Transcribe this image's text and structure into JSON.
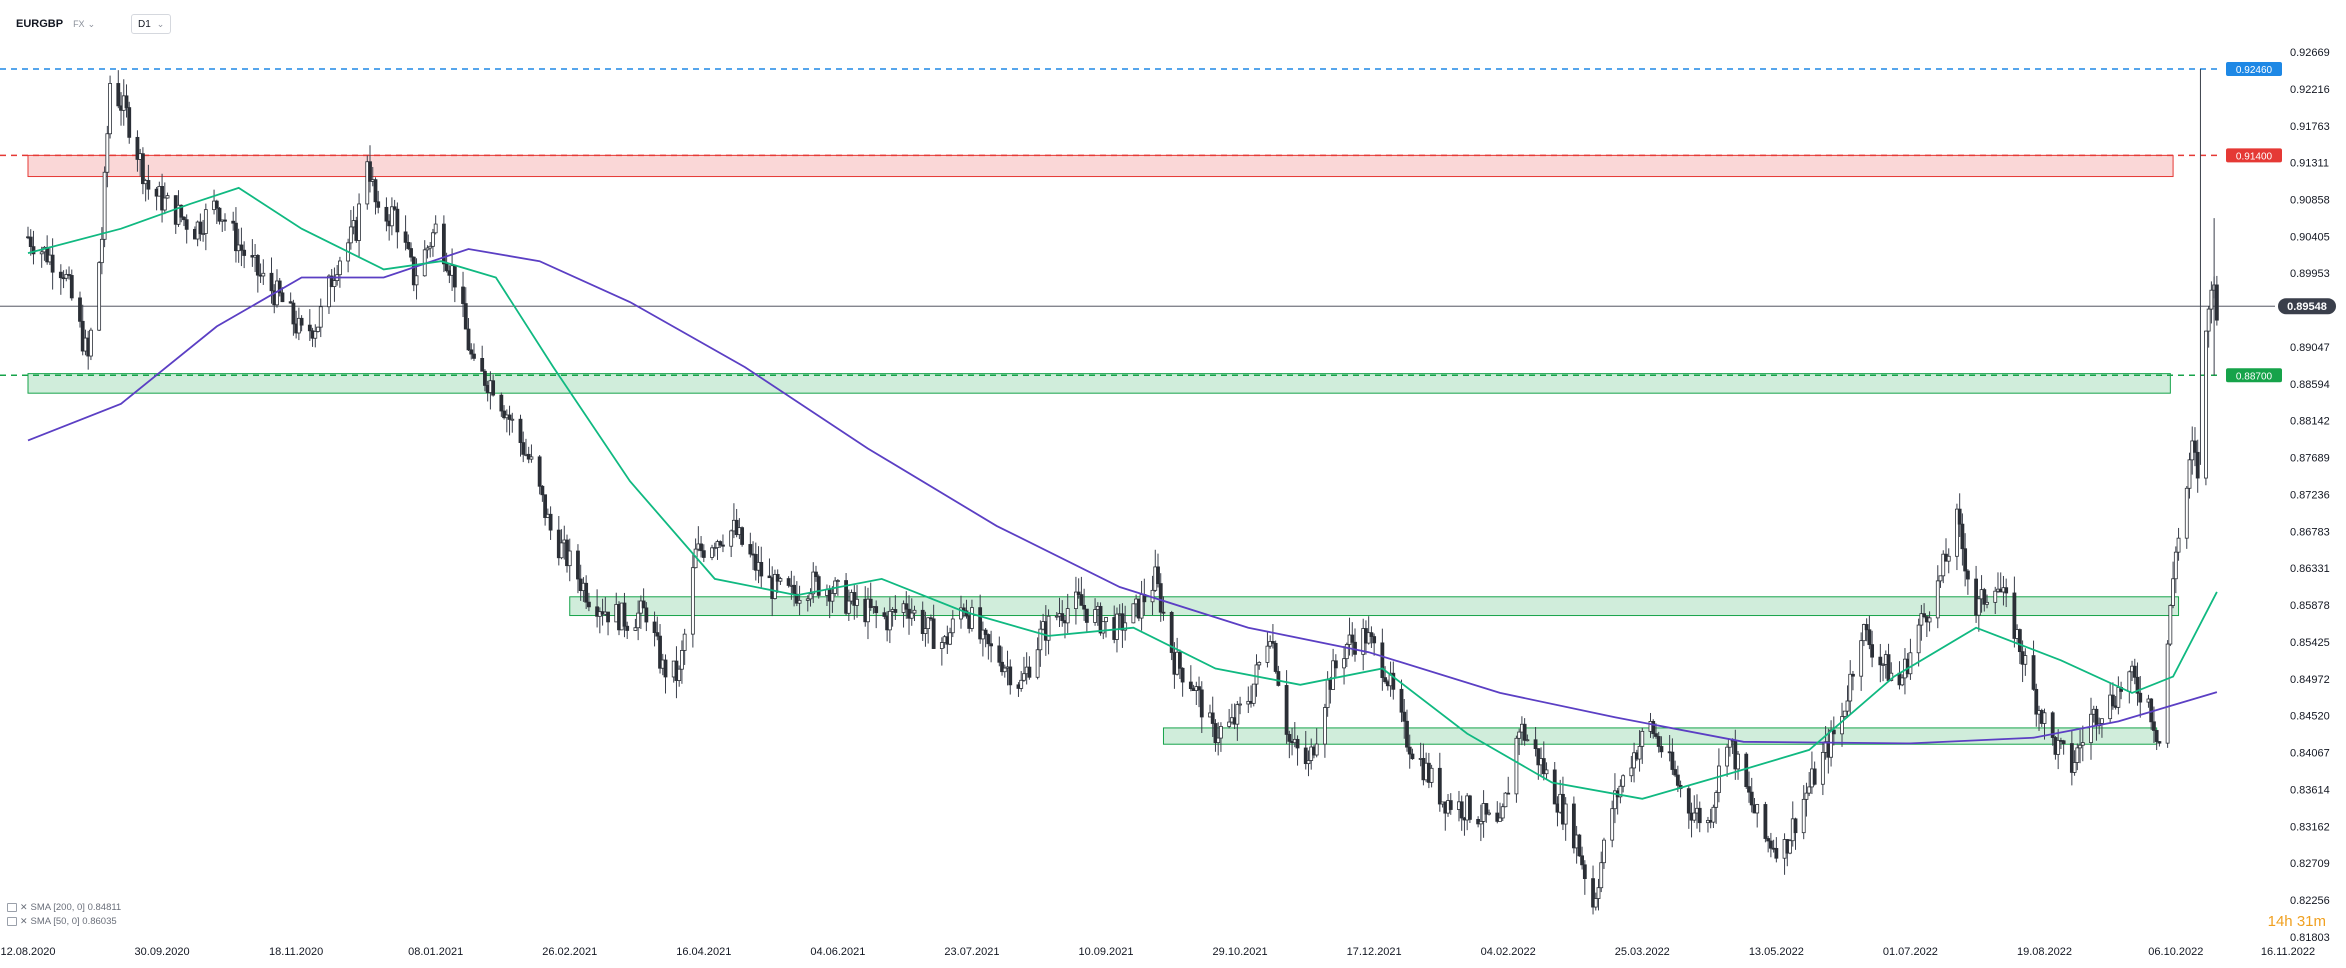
{
  "header": {
    "symbol": "EURGBP",
    "market": "FX",
    "timeframe": "D1"
  },
  "indicators": [
    {
      "label": "SMA [200, 0] 0.84811",
      "color": "#5b3fc4"
    },
    {
      "label": "SMA [50, 0] 0.86035",
      "color": "#10b981"
    }
  ],
  "countdown": "14h 31m",
  "price_tag": {
    "value": "0.89548",
    "color": "#3a3f4b"
  },
  "chart_data": {
    "type": "candlestick",
    "instrument": "EURGBP",
    "timeframe": "D1",
    "ylim": [
      0.818,
      0.929
    ],
    "xlim": [
      "2020-08-12",
      "2022-11-22"
    ],
    "y_ticks": [
      "0.92669",
      "0.92216",
      "0.91763",
      "0.91311",
      "0.90858",
      "0.90405",
      "0.89953",
      "0.89500",
      "0.89047",
      "0.88594",
      "0.88142",
      "0.87689",
      "0.87236",
      "0.86783",
      "0.86331",
      "0.85878",
      "0.85425",
      "0.84972",
      "0.84520",
      "0.84067",
      "0.83614",
      "0.83162",
      "0.82709",
      "0.82256",
      "0.81803"
    ],
    "x_ticks": [
      "12.08.2020",
      "30.09.2020",
      "18.11.2020",
      "08.01.2021",
      "26.02.2021",
      "16.04.2021",
      "04.06.2021",
      "23.07.2021",
      "10.09.2021",
      "29.10.2021",
      "17.12.2021",
      "04.02.2022",
      "25.03.2022",
      "13.05.2022",
      "01.07.2022",
      "19.08.2022",
      "06.10.2022",
      "16.11.2022"
    ],
    "last_price": 0.89548,
    "horizontal_levels": [
      {
        "value": 0.9246,
        "label": "0.92460",
        "color": "#1e88e5",
        "style": "dashed"
      },
      {
        "value": 0.914,
        "label": "0.91400",
        "color": "#e53935",
        "style": "dashed"
      },
      {
        "value": 0.887,
        "label": "0.88700",
        "color": "#16a34a",
        "style": "dashed"
      }
    ],
    "zones": [
      {
        "from": "2020-08-12",
        "to": "2022-10-05",
        "low": 0.9114,
        "high": 0.914,
        "color": "#e53935"
      },
      {
        "from": "2020-08-12",
        "to": "2022-10-04",
        "low": 0.8848,
        "high": 0.8872,
        "color": "#16a34a"
      },
      {
        "from": "2021-02-26",
        "to": "2022-10-07",
        "low": 0.8575,
        "high": 0.8598,
        "color": "#16a34a"
      },
      {
        "from": "2021-10-01",
        "to": "2022-09-29",
        "low": 0.8417,
        "high": 0.8437,
        "color": "#16a34a"
      }
    ],
    "price_path": [
      [
        "2020-08-12",
        0.904
      ],
      [
        "2020-08-25",
        0.9
      ],
      [
        "2020-09-03",
        0.889
      ],
      [
        "2020-09-08",
        0.904
      ],
      [
        "2020-09-11",
        0.923
      ],
      [
        "2020-09-17",
        0.919
      ],
      [
        "2020-09-25",
        0.91
      ],
      [
        "2020-10-05",
        0.907
      ],
      [
        "2020-10-12",
        0.905
      ],
      [
        "2020-10-20",
        0.908
      ],
      [
        "2020-10-28",
        0.903
      ],
      [
        "2020-11-05",
        0.899
      ],
      [
        "2020-11-12",
        0.8965
      ],
      [
        "2020-11-20",
        0.892
      ],
      [
        "2020-11-26",
        0.8935
      ],
      [
        "2020-12-03",
        0.901
      ],
      [
        "2020-12-10",
        0.905
      ],
      [
        "2020-12-14",
        0.914
      ],
      [
        "2020-12-18",
        0.906
      ],
      [
        "2020-12-24",
        0.907
      ],
      [
        "2020-12-31",
        0.899
      ],
      [
        "2021-01-08",
        0.905
      ],
      [
        "2021-01-15",
        0.899
      ],
      [
        "2021-01-22",
        0.8875
      ],
      [
        "2021-01-29",
        0.886
      ],
      [
        "2021-02-05",
        0.881
      ],
      [
        "2021-02-12",
        0.876
      ],
      [
        "2021-02-19",
        0.868
      ],
      [
        "2021-02-26",
        0.864
      ],
      [
        "2021-03-05",
        0.86
      ],
      [
        "2021-03-12",
        0.858
      ],
      [
        "2021-03-19",
        0.857
      ],
      [
        "2021-03-26",
        0.858
      ],
      [
        "2021-04-01",
        0.851
      ],
      [
        "2021-04-07",
        0.85
      ],
      [
        "2021-04-13",
        0.865
      ],
      [
        "2021-04-20",
        0.867
      ],
      [
        "2021-04-27",
        0.868
      ],
      [
        "2021-05-04",
        0.864
      ],
      [
        "2021-05-11",
        0.861
      ],
      [
        "2021-05-18",
        0.86
      ],
      [
        "2021-05-25",
        0.8615
      ],
      [
        "2021-06-01",
        0.861
      ],
      [
        "2021-06-08",
        0.859
      ],
      [
        "2021-06-15",
        0.858
      ],
      [
        "2021-06-22",
        0.857
      ],
      [
        "2021-06-29",
        0.859
      ],
      [
        "2021-07-06",
        0.856
      ],
      [
        "2021-07-13",
        0.854
      ],
      [
        "2021-07-20",
        0.859
      ],
      [
        "2021-07-27",
        0.854
      ],
      [
        "2021-08-03",
        0.852
      ],
      [
        "2021-08-10",
        0.849
      ],
      [
        "2021-08-17",
        0.855
      ],
      [
        "2021-08-24",
        0.858
      ],
      [
        "2021-08-31",
        0.859
      ],
      [
        "2021-09-07",
        0.857
      ],
      [
        "2021-09-14",
        0.856
      ],
      [
        "2021-09-21",
        0.858
      ],
      [
        "2021-09-28",
        0.862
      ],
      [
        "2021-10-05",
        0.852
      ],
      [
        "2021-10-12",
        0.849
      ],
      [
        "2021-10-19",
        0.843
      ],
      [
        "2021-10-26",
        0.844
      ],
      [
        "2021-11-02",
        0.848
      ],
      [
        "2021-11-09",
        0.856
      ],
      [
        "2021-11-16",
        0.842
      ],
      [
        "2021-11-23",
        0.839
      ],
      [
        "2021-11-30",
        0.849
      ],
      [
        "2021-12-07",
        0.854
      ],
      [
        "2021-12-14",
        0.855
      ],
      [
        "2021-12-21",
        0.851
      ],
      [
        "2021-12-28",
        0.843
      ],
      [
        "2022-01-04",
        0.839
      ],
      [
        "2022-01-11",
        0.835
      ],
      [
        "2022-01-18",
        0.834
      ],
      [
        "2022-01-25",
        0.833
      ],
      [
        "2022-02-01",
        0.831
      ],
      [
        "2022-02-08",
        0.844
      ],
      [
        "2022-02-15",
        0.84
      ],
      [
        "2022-02-22",
        0.835
      ],
      [
        "2022-03-01",
        0.83
      ],
      [
        "2022-03-07",
        0.822
      ],
      [
        "2022-03-14",
        0.834
      ],
      [
        "2022-03-21",
        0.84
      ],
      [
        "2022-03-28",
        0.844
      ],
      [
        "2022-04-04",
        0.839
      ],
      [
        "2022-04-11",
        0.834
      ],
      [
        "2022-04-18",
        0.832
      ],
      [
        "2022-04-25",
        0.843
      ],
      [
        "2022-05-02",
        0.836
      ],
      [
        "2022-05-09",
        0.83
      ],
      [
        "2022-05-16",
        0.829
      ],
      [
        "2022-05-23",
        0.835
      ],
      [
        "2022-05-30",
        0.84
      ],
      [
        "2022-06-06",
        0.845
      ],
      [
        "2022-06-13",
        0.856
      ],
      [
        "2022-06-20",
        0.852
      ],
      [
        "2022-06-27",
        0.849
      ],
      [
        "2022-07-04",
        0.856
      ],
      [
        "2022-07-11",
        0.861
      ],
      [
        "2022-07-18",
        0.869
      ],
      [
        "2022-07-25",
        0.858
      ],
      [
        "2022-08-01",
        0.862
      ],
      [
        "2022-08-08",
        0.856
      ],
      [
        "2022-08-15",
        0.848
      ],
      [
        "2022-08-22",
        0.842
      ],
      [
        "2022-08-29",
        0.839
      ],
      [
        "2022-09-05",
        0.845
      ],
      [
        "2022-09-12",
        0.847
      ],
      [
        "2022-09-19",
        0.85
      ],
      [
        "2022-09-26",
        0.847
      ],
      [
        "2022-09-30",
        0.842
      ],
      [
        "2022-10-04",
        0.858
      ],
      [
        "2022-10-06",
        0.866
      ],
      [
        "2022-10-08",
        0.868
      ],
      [
        "2022-10-10",
        0.873
      ],
      [
        "2022-10-12",
        0.878
      ],
      [
        "2022-10-14",
        0.875
      ],
      [
        "2022-10-16",
        0.888
      ],
      [
        "2022-10-18",
        0.895
      ],
      [
        "2022-10-19",
        0.899
      ],
      [
        "2022-10-21",
        0.8955
      ]
    ],
    "sma_200": [
      [
        "2020-08-12",
        0.879
      ],
      [
        "2020-09-15",
        0.8835
      ],
      [
        "2020-10-20",
        0.893
      ],
      [
        "2020-11-20",
        0.899
      ],
      [
        "2020-12-20",
        0.899
      ],
      [
        "2021-01-20",
        0.9025
      ],
      [
        "2021-02-15",
        0.901
      ],
      [
        "2021-03-20",
        0.896
      ],
      [
        "2021-05-01",
        0.888
      ],
      [
        "2021-06-15",
        0.878
      ],
      [
        "2021-08-01",
        0.8685
      ],
      [
        "2021-09-15",
        0.861
      ],
      [
        "2021-11-01",
        0.856
      ],
      [
        "2021-12-15",
        0.853
      ],
      [
        "2022-02-01",
        0.848
      ],
      [
        "2022-03-15",
        0.845
      ],
      [
        "2022-05-01",
        0.842
      ],
      [
        "2022-07-01",
        0.8418
      ],
      [
        "2022-08-15",
        0.8425
      ],
      [
        "2022-09-15",
        0.8445
      ],
      [
        "2022-10-21",
        0.8481
      ]
    ],
    "sma_50": [
      [
        "2020-08-12",
        0.902
      ],
      [
        "2020-09-15",
        0.905
      ],
      [
        "2020-10-10",
        0.908
      ],
      [
        "2020-10-28",
        0.91
      ],
      [
        "2020-11-20",
        0.905
      ],
      [
        "2020-12-20",
        0.9
      ],
      [
        "2021-01-10",
        0.901
      ],
      [
        "2021-01-30",
        0.899
      ],
      [
        "2021-02-20",
        0.888
      ],
      [
        "2021-03-20",
        0.874
      ],
      [
        "2021-04-20",
        0.862
      ],
      [
        "2021-05-20",
        0.86
      ],
      [
        "2021-06-20",
        0.862
      ],
      [
        "2021-07-20",
        0.858
      ],
      [
        "2021-08-20",
        0.855
      ],
      [
        "2021-09-20",
        0.856
      ],
      [
        "2021-10-20",
        0.851
      ],
      [
        "2021-11-20",
        0.849
      ],
      [
        "2021-12-20",
        0.851
      ],
      [
        "2022-01-20",
        0.843
      ],
      [
        "2022-02-20",
        0.837
      ],
      [
        "2022-03-25",
        0.835
      ],
      [
        "2022-04-25",
        0.838
      ],
      [
        "2022-05-25",
        0.841
      ],
      [
        "2022-06-25",
        0.85
      ],
      [
        "2022-07-25",
        0.856
      ],
      [
        "2022-08-25",
        0.852
      ],
      [
        "2022-09-20",
        0.848
      ],
      [
        "2022-10-05",
        0.85
      ],
      [
        "2022-10-21",
        0.8604
      ]
    ]
  }
}
